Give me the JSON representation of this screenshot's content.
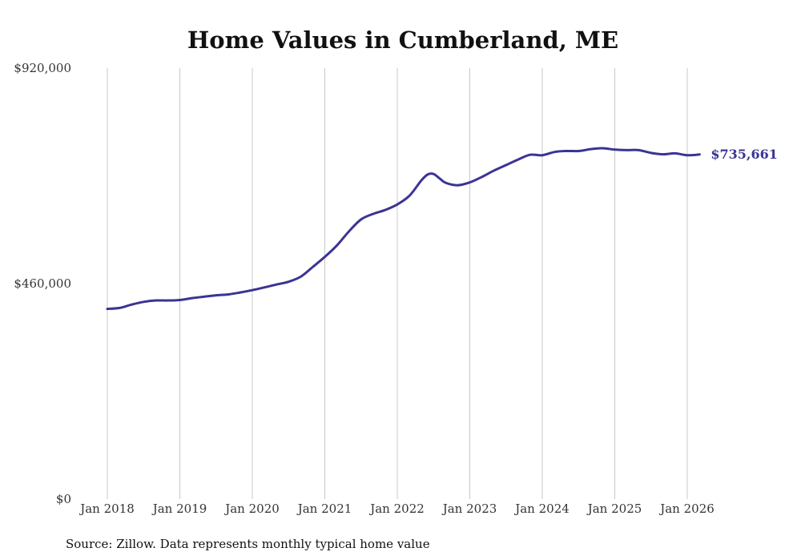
{
  "chart_data": {
    "type": "line",
    "title": "Home Values in Cumberland, ME",
    "xlabel": "",
    "ylabel": "",
    "source": "Source: Zillow. Data represents monthly typical home value",
    "y_ticks": [
      {
        "value": 0,
        "label": "$0"
      },
      {
        "value": 460000,
        "label": "$460,000"
      },
      {
        "value": 920000,
        "label": "$920,000"
      }
    ],
    "ylim": [
      0,
      920000
    ],
    "x_ticks": [
      {
        "value": 2018.0,
        "label": "Jan 2018"
      },
      {
        "value": 2019.0,
        "label": "Jan 2019"
      },
      {
        "value": 2020.0,
        "label": "Jan 2020"
      },
      {
        "value": 2021.0,
        "label": "Jan 2021"
      },
      {
        "value": 2022.0,
        "label": "Jan 2022"
      },
      {
        "value": 2023.0,
        "label": "Jan 2023"
      },
      {
        "value": 2024.0,
        "label": "Jan 2024"
      },
      {
        "value": 2025.0,
        "label": "Jan 2025"
      },
      {
        "value": 2026.0,
        "label": "Jan 2026"
      }
    ],
    "xlim": [
      2018.0,
      2026.17
    ],
    "grid": "vertical",
    "line_color": "#3a3494",
    "end_label": "$735,661",
    "series": [
      {
        "name": "Typical home value",
        "x": [
          2018.0,
          2018.17,
          2018.33,
          2018.5,
          2018.67,
          2018.83,
          2019.0,
          2019.17,
          2019.33,
          2019.5,
          2019.67,
          2019.83,
          2020.0,
          2020.17,
          2020.33,
          2020.5,
          2020.67,
          2020.83,
          2021.0,
          2021.17,
          2021.33,
          2021.5,
          2021.67,
          2021.83,
          2022.0,
          2022.17,
          2022.33,
          2022.42,
          2022.5,
          2022.58,
          2022.67,
          2022.83,
          2023.0,
          2023.17,
          2023.33,
          2023.5,
          2023.67,
          2023.83,
          2024.0,
          2024.17,
          2024.33,
          2024.5,
          2024.67,
          2024.83,
          2025.0,
          2025.17,
          2025.33,
          2025.5,
          2025.67,
          2025.83,
          2026.0,
          2026.17
        ],
        "values": [
          406000,
          408000,
          415000,
          421000,
          424000,
          424000,
          425000,
          429000,
          432000,
          435000,
          437000,
          441000,
          446000,
          452000,
          458000,
          464000,
          475000,
          495000,
          517000,
          542000,
          571000,
          597000,
          609000,
          617000,
          629000,
          648000,
          680000,
          693000,
          694000,
          685000,
          675000,
          670000,
          676000,
          688000,
          701000,
          713000,
          725000,
          735000,
          734000,
          741000,
          743000,
          743000,
          747000,
          749000,
          746000,
          745000,
          745000,
          739000,
          736000,
          738000,
          734000,
          735661
        ]
      }
    ]
  }
}
